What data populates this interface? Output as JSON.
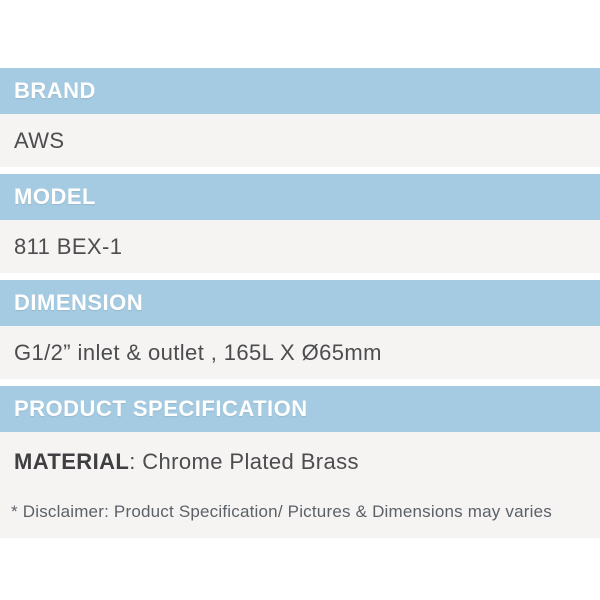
{
  "colors": {
    "header_background": "#a5cbe2",
    "header_text": "#ffffff",
    "row_background": "#f5f4f2",
    "row_text": "#4d4d4f",
    "disclaimer_text": "#5c6168",
    "page_background": "#ffffff"
  },
  "spec_table": {
    "sections": [
      {
        "label": "BRAND",
        "value": "AWS"
      },
      {
        "label": "MODEL",
        "value": "811 BEX-1"
      },
      {
        "label": "DIMENSION",
        "value": "G1/2” inlet & outlet , 165L X Ø65mm"
      },
      {
        "label": "PRODUCT SPECIFICATION",
        "value_bold": "MATERIAL",
        "value_rest": ": Chrome Plated Brass"
      }
    ],
    "disclaimer": "* Disclaimer: Product Specification/ Pictures & Dimensions may varies"
  }
}
